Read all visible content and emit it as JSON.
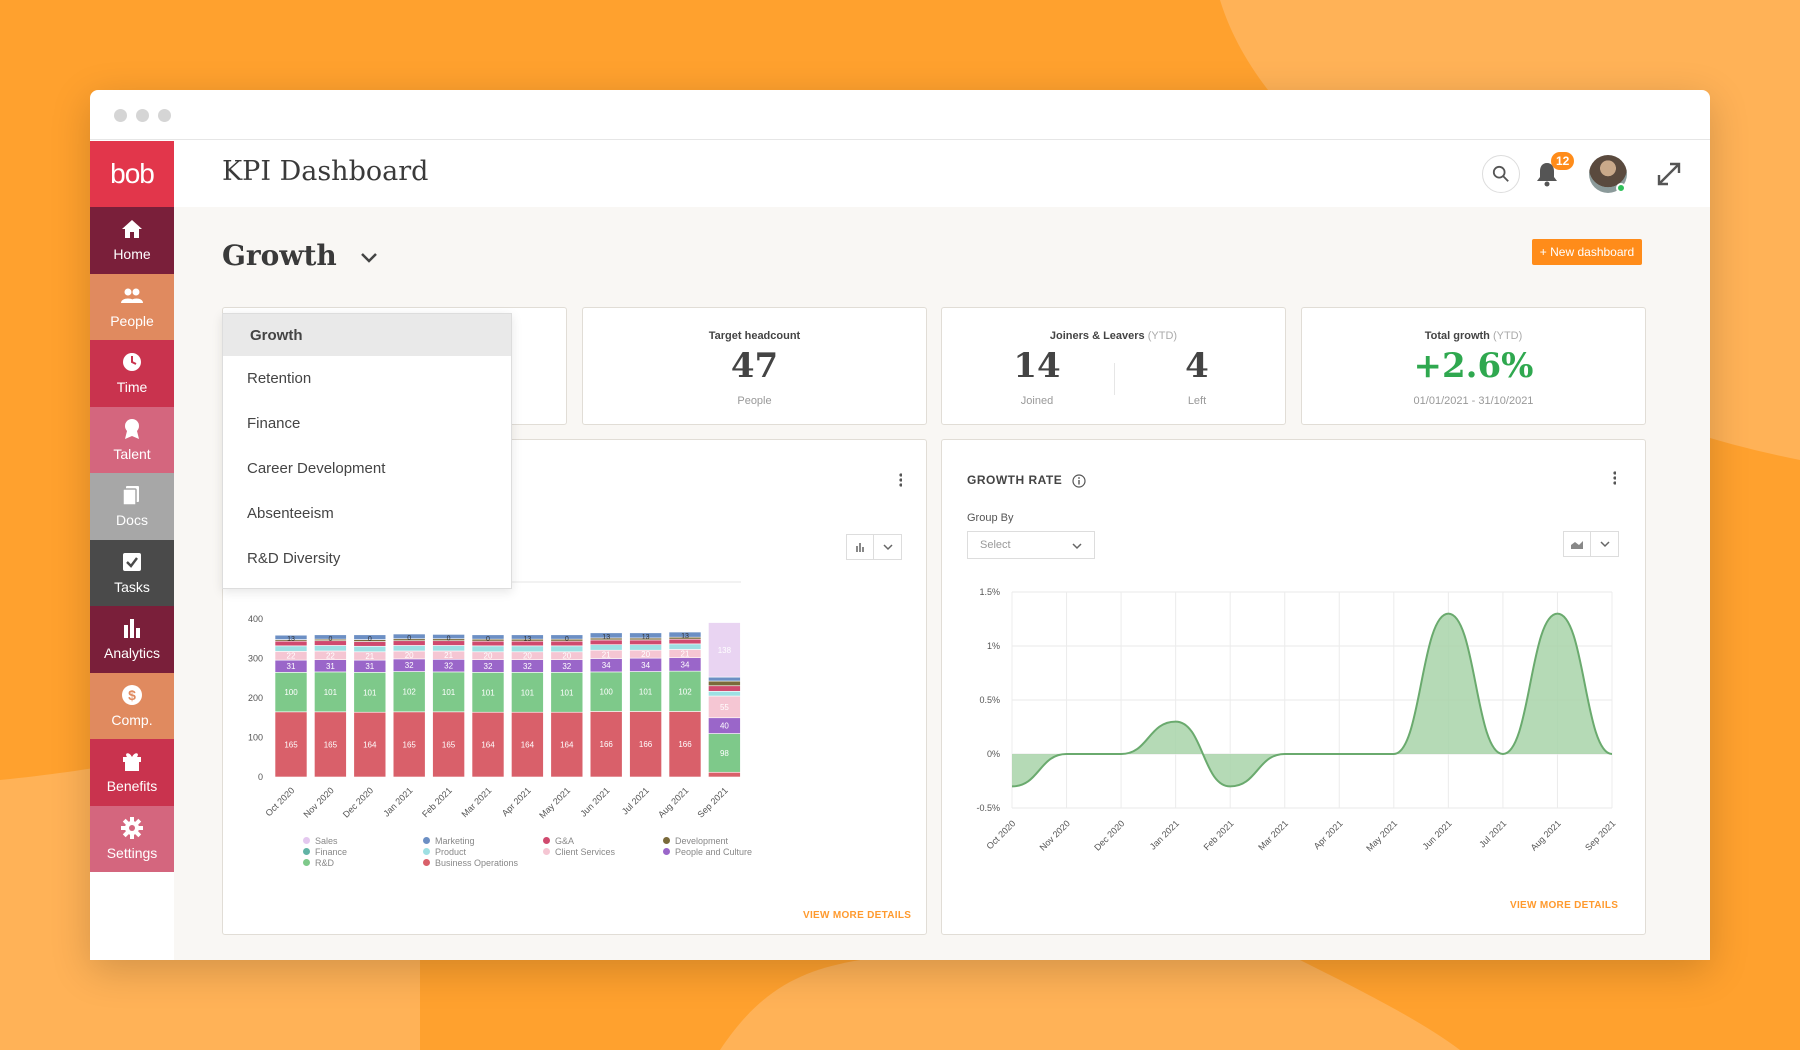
{
  "window": {
    "title": "KPI Dashboard"
  },
  "logo": "bob",
  "sidebar": {
    "items": [
      {
        "label": "Home",
        "icon": "home-icon",
        "color": "#7a1f3a"
      },
      {
        "label": "People",
        "icon": "people-icon",
        "color": "#e08a5f"
      },
      {
        "label": "Time",
        "icon": "clock-icon",
        "color": "#c9334e"
      },
      {
        "label": "Talent",
        "icon": "badge-icon",
        "color": "#d4667e"
      },
      {
        "label": "Docs",
        "icon": "docs-icon",
        "color": "#a7a7a7"
      },
      {
        "label": "Tasks",
        "icon": "tasks-icon",
        "color": "#4a4a4a"
      },
      {
        "label": "Analytics",
        "icon": "analytics-icon",
        "color": "#7a1f3a"
      },
      {
        "label": "Comp.",
        "icon": "dollar-icon",
        "color": "#e08a5f"
      },
      {
        "label": "Benefits",
        "icon": "gift-icon",
        "color": "#c9334e"
      },
      {
        "label": "Settings",
        "icon": "gear-icon",
        "color": "#d4667e"
      }
    ]
  },
  "header": {
    "notifications": "12"
  },
  "dashboard": {
    "selected": "Growth",
    "new_button": "+ New dashboard",
    "menu": [
      "Growth",
      "Retention",
      "Finance",
      "Career Development",
      "Absenteeism",
      "R&D Diversity"
    ]
  },
  "kpis": {
    "target": {
      "label": "Target headcount",
      "value": "47",
      "sub": "People"
    },
    "joiners": {
      "label": "Joiners & Leavers",
      "suffix": "(YTD)",
      "joined": "14",
      "joined_label": "Joined",
      "left": "4",
      "left_label": "Left"
    },
    "growth": {
      "label": "Total growth",
      "suffix": "(YTD)",
      "value": "+2.6%",
      "sub": "01/01/2021 - 31/10/2021",
      "color": "#2fa84f"
    }
  },
  "headcount_card": {
    "view_more": "VIEW MORE DETAILS"
  },
  "growth_card": {
    "title": "GROWTH RATE",
    "group_by": "Group By",
    "select_placeholder": "Select",
    "view_more": "VIEW MORE DETAILS"
  },
  "chart_data": [
    {
      "type": "bar",
      "stacked": true,
      "categories": [
        "Oct 2020",
        "Nov 2020",
        "Dec 2020",
        "Jan 2021",
        "Feb 2021",
        "Mar 2021",
        "Apr 2021",
        "May 2021",
        "Jun 2021",
        "Jul 2021",
        "Aug 2021",
        "Sep 2021"
      ],
      "ylim": [
        0,
        400
      ],
      "yticks": [
        0,
        100,
        200,
        300,
        400
      ],
      "series": [
        {
          "name": "Business Operations",
          "color": "#d9606a",
          "values": [
            165,
            165,
            164,
            165,
            165,
            164,
            164,
            164,
            166,
            166,
            166,
            12
          ]
        },
        {
          "name": "R&D",
          "color": "#7ec98a",
          "values": [
            100,
            101,
            101,
            102,
            101,
            101,
            101,
            101,
            100,
            101,
            102,
            98
          ]
        },
        {
          "name": "People and Culture",
          "color": "#9a66c9",
          "values": [
            31,
            31,
            31,
            32,
            32,
            32,
            32,
            32,
            34,
            34,
            34,
            40
          ]
        },
        {
          "name": "Client Services",
          "color": "#f5c6d3",
          "values": [
            22,
            22,
            21,
            20,
            21,
            20,
            20,
            20,
            21,
            20,
            21,
            55
          ]
        },
        {
          "name": "Product",
          "color": "#9ee0e3",
          "values": [
            14,
            14,
            14,
            14,
            14,
            15,
            15,
            15,
            14,
            14,
            14,
            12
          ]
        },
        {
          "name": "G&A",
          "color": "#d04a6e",
          "values": [
            12,
            12,
            12,
            12,
            12,
            12,
            12,
            12,
            12,
            12,
            12,
            14
          ]
        },
        {
          "name": "Development",
          "color": "#7a6a3a",
          "values": [
            4,
            4,
            5,
            5,
            5,
            5,
            5,
            5,
            5,
            5,
            5,
            12
          ]
        },
        {
          "name": "Marketing",
          "color": "#6c8fc4",
          "values": [
            11,
            11,
            12,
            12,
            11,
            11,
            11,
            11,
            13,
            13,
            13,
            10
          ]
        },
        {
          "name": "Finance",
          "color": "#61b3a5",
          "values": [
            0,
            0,
            0,
            0,
            0,
            0,
            0,
            0,
            0,
            0,
            0,
            0
          ]
        },
        {
          "name": "Sales",
          "color": "#e9d4f2",
          "values": [
            0,
            0,
            0,
            0,
            0,
            0,
            0,
            0,
            0,
            0,
            0,
            138
          ]
        }
      ],
      "labels_top": [
        "13",
        "0",
        "0",
        "0",
        "0",
        "0",
        "13",
        "0",
        "13",
        "13",
        "13",
        ""
      ],
      "legend_order": [
        {
          "name": "Sales",
          "color": "#e4c8ef"
        },
        {
          "name": "Finance",
          "color": "#61b3a5"
        },
        {
          "name": "R&D",
          "color": "#7ec98a"
        },
        {
          "name": "Marketing",
          "color": "#6c8fc4"
        },
        {
          "name": "Product",
          "color": "#9ee0e3"
        },
        {
          "name": "Business Operations",
          "color": "#d9606a"
        },
        {
          "name": "G&A",
          "color": "#d04a6e"
        },
        {
          "name": "Client Services",
          "color": "#f5c6d3"
        },
        {
          "name": "Development",
          "color": "#7a6a3a"
        },
        {
          "name": "People and Culture",
          "color": "#9a66c9"
        }
      ]
    },
    {
      "type": "area",
      "title": "GROWTH RATE",
      "categories": [
        "Oct 2020",
        "Nov 2020",
        "Dec 2020",
        "Jan 2021",
        "Feb 2021",
        "Mar 2021",
        "Apr 2021",
        "May 2021",
        "Jun 2021",
        "Jul 2021",
        "Aug 2021",
        "Sep 2021"
      ],
      "values": [
        -0.3,
        0,
        0,
        0.3,
        -0.3,
        0,
        0,
        0,
        1.3,
        0,
        1.3,
        0
      ],
      "ylim": [
        -0.5,
        1.5
      ],
      "yticks": [
        "-0.5%",
        "0%",
        "0.5%",
        "1%",
        "1.5%"
      ],
      "ytick_values": [
        -0.5,
        0,
        0.5,
        1,
        1.5
      ],
      "color": "#6aaa6e",
      "fill": "#a8d4a9",
      "grid": true
    }
  ]
}
